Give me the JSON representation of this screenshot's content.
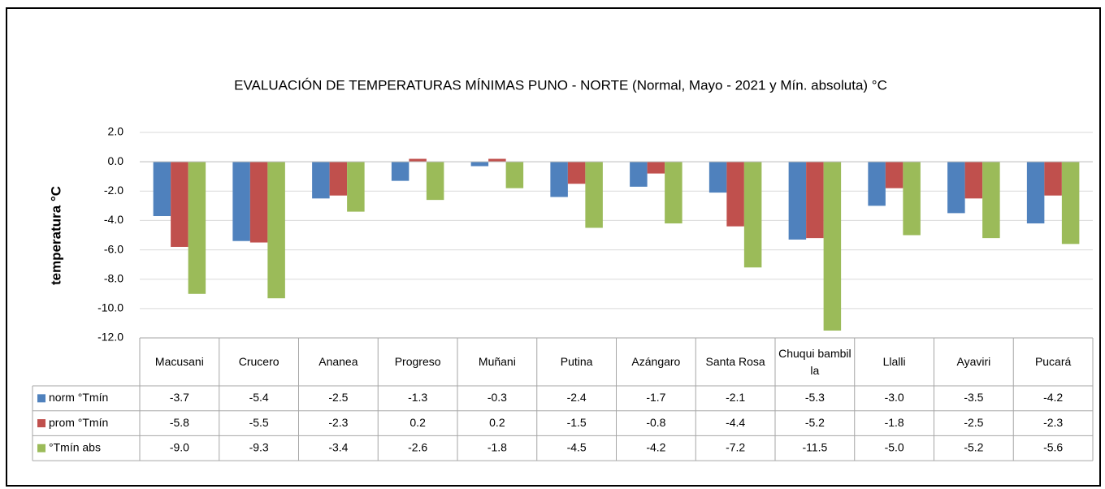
{
  "chart_data": {
    "type": "bar",
    "title": "EVALUACIÓN DE TEMPERATURAS MÍNIMAS PUNO - NORTE (Normal, Mayo - 2021 y  Mín. absoluta) °C",
    "y_axis_label": "temperatura °C",
    "categories": [
      "Macusani",
      "Crucero",
      "Ananea",
      "Progreso",
      "Muñani",
      "Putina",
      "Azángaro",
      "Santa Rosa",
      "Chuqui bambilla",
      "Llalli",
      "Ayaviri",
      "Pucará"
    ],
    "series": [
      {
        "name": "norm °Tmín",
        "color": "#4f81bd",
        "values": [
          -3.7,
          -5.4,
          -2.5,
          -1.3,
          -0.3,
          -2.4,
          -1.7,
          -2.1,
          -5.3,
          -3.0,
          -3.5,
          -4.2
        ],
        "value_labels": [
          "-3.7",
          "-5.4",
          "-2.5",
          "-1.3",
          "-0.3",
          "-2.4",
          "-1.7",
          "-2.1",
          "-5.3",
          "-3.0",
          "-3.5",
          "-4.2"
        ]
      },
      {
        "name": "prom °Tmín",
        "color": "#c0504d",
        "values": [
          -5.8,
          -5.5,
          -2.3,
          0.2,
          0.2,
          -1.5,
          -0.8,
          -4.4,
          -5.2,
          -1.8,
          -2.5,
          -2.3
        ],
        "value_labels": [
          "-5.8",
          "-5.5",
          "-2.3",
          "0.2",
          "0.2",
          "-1.5",
          "-0.8",
          "-4.4",
          "-5.2",
          "-1.8",
          "-2.5",
          "-2.3"
        ]
      },
      {
        "name": "°Tmín abs",
        "color": "#9bbb59",
        "values": [
          -9.0,
          -9.3,
          -3.4,
          -2.6,
          -1.8,
          -4.5,
          -4.2,
          -7.2,
          -11.5,
          -5.0,
          -5.2,
          -5.6
        ],
        "value_labels": [
          "-9.0",
          "-9.3",
          "-3.4",
          "-2.6",
          "-1.8",
          "-4.5",
          "-4.2",
          "-7.2",
          "-11.5",
          "-5.0",
          "-5.2",
          "-5.6"
        ]
      }
    ],
    "ylim": [
      -12,
      2
    ],
    "yticks": [
      {
        "value": -12,
        "label": "-12.0"
      },
      {
        "value": -10,
        "label": "-10.0"
      },
      {
        "value": -8,
        "label": "-8.0"
      },
      {
        "value": -6,
        "label": "-6.0"
      },
      {
        "value": -4,
        "label": "-4.0"
      },
      {
        "value": -2,
        "label": "-2.0"
      },
      {
        "value": 0,
        "label": "0.0"
      },
      {
        "value": 2,
        "label": "2.0"
      }
    ],
    "grid": true
  }
}
